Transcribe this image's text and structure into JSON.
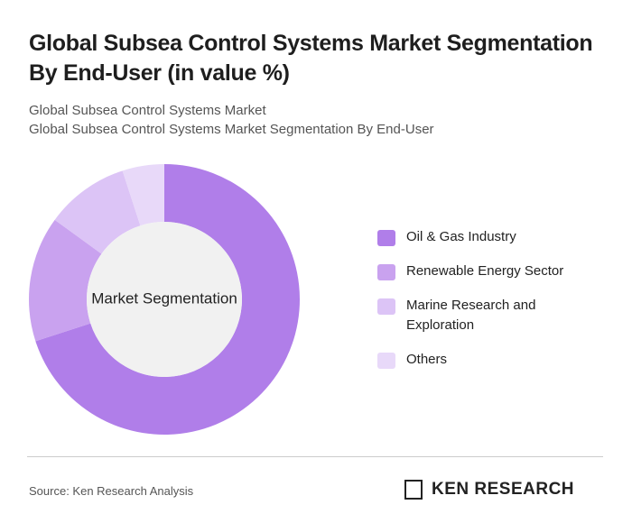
{
  "chart_data": {
    "type": "donut",
    "title": "Global Subsea Control Systems Market Segmentation By End-User (in value %)",
    "subtitle": [
      "Global Subsea Control Systems Market",
      "Global Subsea Control Systems Market Segmentation By End-User"
    ],
    "center_label": "Market Segmentation",
    "categories": [
      "Oil & Gas Industry",
      "Renewable Energy Sector",
      "Marine Research and Exploration",
      "Others"
    ],
    "values": [
      70,
      15,
      10,
      5
    ],
    "colors": [
      "#b07ee9",
      "#c9a2ef",
      "#dcc4f6",
      "#e8d9f9"
    ],
    "source": "Source: Ken Research Analysis",
    "logo": "KEN RESEARCH"
  }
}
